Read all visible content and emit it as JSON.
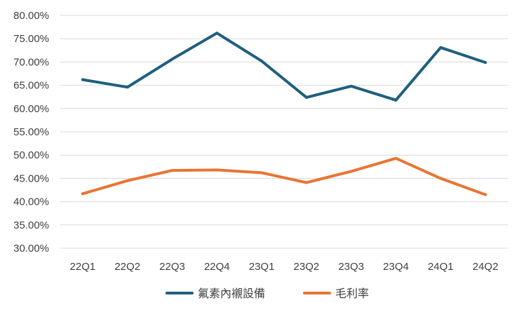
{
  "chart_data": {
    "type": "line",
    "title": "",
    "xlabel": "",
    "ylabel": "",
    "categories": [
      "22Q1",
      "22Q2",
      "22Q3",
      "22Q4",
      "23Q1",
      "23Q2",
      "23Q3",
      "23Q4",
      "24Q1",
      "24Q2"
    ],
    "ylim": [
      30,
      80
    ],
    "ytick_step": 5,
    "ytick_labels": [
      "30.00%",
      "35.00%",
      "40.00%",
      "45.00%",
      "50.00%",
      "55.00%",
      "60.00%",
      "65.00%",
      "70.00%",
      "75.00%",
      "80.00%"
    ],
    "grid": true,
    "legend_position": "bottom-center",
    "series": [
      {
        "name": "氟素內襯設備",
        "color": "#1f5f7f",
        "values": [
          66.2,
          64.6,
          70.6,
          76.2,
          70.2,
          62.4,
          64.8,
          61.8,
          73.1,
          69.9
        ]
      },
      {
        "name": "毛利率",
        "color": "#ea7433",
        "values": [
          41.7,
          44.5,
          46.7,
          46.8,
          46.2,
          44.1,
          46.5,
          49.3,
          45.0,
          41.5
        ]
      }
    ]
  }
}
